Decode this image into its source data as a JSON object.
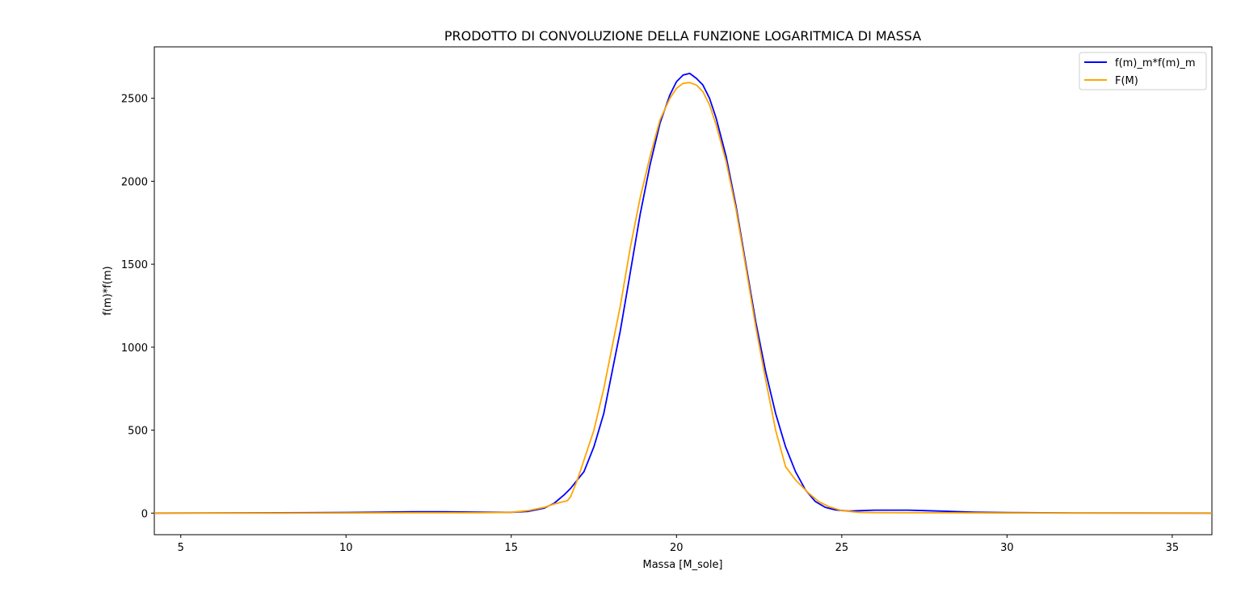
{
  "chart_data": {
    "type": "line",
    "title": "PRODOTTO DI CONVOLUZIONE DELLA FUNZIONE LOGARITMICA DI MASSA",
    "xlabel": "Massa [M_sole]",
    "ylabel": "f(m)*f(m)",
    "xlim": [
      4.2,
      36.2
    ],
    "ylim": [
      -130,
      2810
    ],
    "xticks": [
      "5",
      "10",
      "15",
      "20",
      "25",
      "30",
      "35"
    ],
    "yticks": [
      "0",
      "500",
      "1000",
      "1500",
      "2000",
      "2500"
    ],
    "grid": false,
    "legend_position": "top-right",
    "series": [
      {
        "name": "f(m)_m*f(m)_m",
        "color": "#0000ff",
        "x": [
          4.2,
          8,
          10,
          11,
          12,
          13,
          14,
          15,
          15.5,
          16,
          16.3,
          16.6,
          16.8,
          17.0,
          17.2,
          17.5,
          17.8,
          18.0,
          18.3,
          18.6,
          18.9,
          19.2,
          19.5,
          19.8,
          20.0,
          20.2,
          20.4,
          20.6,
          20.8,
          21.0,
          21.2,
          21.5,
          21.8,
          22.1,
          22.4,
          22.7,
          23.0,
          23.3,
          23.6,
          23.9,
          24.2,
          24.5,
          24.8,
          25.2,
          25.6,
          26,
          27,
          28,
          29,
          30,
          32,
          36.2
        ],
        "y": [
          0,
          2,
          4,
          6,
          8,
          8,
          6,
          5,
          10,
          30,
          60,
          110,
          150,
          200,
          250,
          400,
          600,
          800,
          1100,
          1450,
          1800,
          2100,
          2350,
          2520,
          2600,
          2640,
          2650,
          2620,
          2580,
          2500,
          2380,
          2150,
          1850,
          1500,
          1150,
          850,
          600,
          400,
          250,
          140,
          70,
          35,
          20,
          12,
          15,
          18,
          18,
          12,
          6,
          3,
          1,
          0
        ]
      },
      {
        "name": "F(M)",
        "color": "#ffa500",
        "x": [
          4.2,
          8,
          10,
          12,
          14,
          15,
          15.5,
          16,
          16.3,
          16.6,
          16.7,
          16.8,
          17.0,
          17.2,
          17.5,
          17.8,
          18.0,
          18.3,
          18.6,
          18.9,
          19.2,
          19.5,
          19.8,
          20.0,
          20.2,
          20.4,
          20.6,
          20.8,
          21.0,
          21.2,
          21.5,
          21.8,
          22.1,
          22.4,
          22.7,
          23.0,
          23.3,
          23.6,
          24.0,
          24.3,
          24.6,
          25.0,
          25.5,
          26,
          28,
          30,
          32,
          36.2
        ],
        "y": [
          0,
          0,
          1,
          2,
          2,
          5,
          15,
          35,
          55,
          70,
          75,
          100,
          200,
          320,
          500,
          750,
          950,
          1250,
          1600,
          1900,
          2150,
          2370,
          2500,
          2560,
          2590,
          2595,
          2580,
          2540,
          2460,
          2340,
          2120,
          1830,
          1480,
          1120,
          800,
          500,
          280,
          200,
          120,
          70,
          40,
          15,
          5,
          3,
          2,
          1,
          0,
          0
        ]
      }
    ]
  }
}
